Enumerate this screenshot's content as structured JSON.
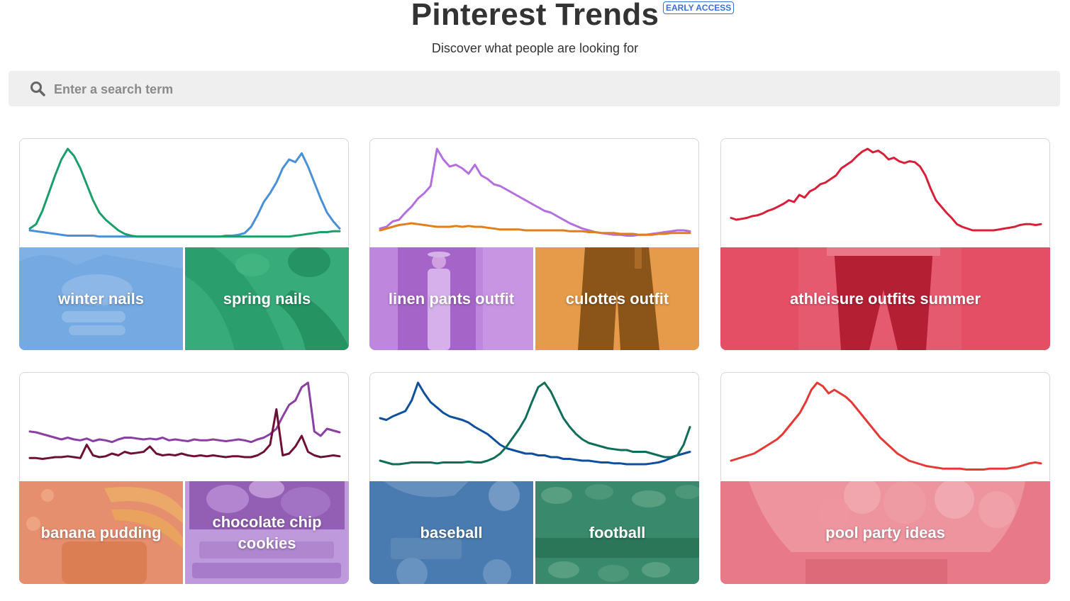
{
  "header": {
    "title": "Pinterest Trends",
    "badge": "EARLY ACCESS",
    "subtitle": "Discover what people are looking for"
  },
  "search": {
    "placeholder": "Enter a search term",
    "icon": "search-icon"
  },
  "cards": [
    {
      "tiles": [
        {
          "label": "winter nails",
          "color": "#4a8fd9"
        },
        {
          "label": "spring nails",
          "color": "#1a9e66"
        }
      ],
      "chart_data": {
        "type": "line",
        "title": "",
        "xlabel": "",
        "ylabel": "",
        "ylim": [
          0,
          100
        ],
        "series": [
          {
            "color": "#4a90d9",
            "values": [
              8,
              7,
              6,
              5,
              4,
              3,
              2,
              2,
              2,
              2,
              2,
              1,
              1,
              1,
              1,
              1,
              1,
              1,
              1,
              1,
              1,
              1,
              1,
              1,
              1,
              1,
              1,
              1,
              1,
              1,
              1,
              2,
              2,
              3,
              5,
              12,
              25,
              40,
              50,
              62,
              78,
              88,
              85,
              95,
              80,
              62,
              44,
              28,
              18,
              10
            ]
          },
          {
            "color": "#1a9e6a",
            "values": [
              10,
              15,
              30,
              50,
              70,
              88,
              100,
              92,
              78,
              60,
              42,
              28,
              20,
              14,
              8,
              4,
              2,
              1,
              1,
              1,
              1,
              1,
              1,
              1,
              1,
              1,
              1,
              1,
              1,
              1,
              1,
              1,
              1,
              1,
              1,
              1,
              1,
              1,
              1,
              1,
              1,
              1,
              2,
              3,
              4,
              5,
              6,
              6,
              7,
              7
            ]
          }
        ]
      }
    },
    {
      "tiles": [
        {
          "label": "linen pants outfit",
          "color": "#b36fd9"
        },
        {
          "label": "culottes outfit",
          "color": "#e08a2a"
        }
      ],
      "chart_data": {
        "type": "line",
        "title": "",
        "xlabel": "",
        "ylabel": "",
        "ylim": [
          0,
          100
        ],
        "series": [
          {
            "color": "#b36fe0",
            "values": [
              10,
              12,
              18,
              20,
              28,
              35,
              44,
              50,
              58,
              100,
              88,
              80,
              82,
              78,
              72,
              82,
              70,
              66,
              60,
              58,
              54,
              50,
              46,
              42,
              38,
              34,
              30,
              28,
              24,
              20,
              16,
              13,
              10,
              8,
              6,
              5,
              4,
              3,
              3,
              2,
              2,
              3,
              3,
              4,
              5,
              6,
              7,
              8,
              8,
              7
            ]
          },
          {
            "color": "#e07f1e",
            "values": [
              8,
              10,
              12,
              14,
              15,
              16,
              15,
              14,
              13,
              12,
              12,
              12,
              13,
              12,
              13,
              12,
              12,
              11,
              10,
              9,
              9,
              9,
              9,
              8,
              8,
              8,
              8,
              8,
              8,
              8,
              7,
              7,
              7,
              6,
              6,
              5,
              5,
              5,
              4,
              4,
              4,
              3,
              3,
              3,
              4,
              4,
              5,
              5,
              5,
              5
            ]
          }
        ]
      }
    },
    {
      "tiles": [
        {
          "label": "athleisure outfits summer",
          "color": "#e0354f"
        }
      ],
      "chart_data": {
        "type": "line",
        "title": "",
        "xlabel": "",
        "ylabel": "",
        "ylim": [
          0,
          100
        ],
        "series": [
          {
            "color": "#d81f3a",
            "values": [
              22,
              20,
              21,
              22,
              24,
              25,
              27,
              30,
              32,
              35,
              38,
              42,
              40,
              48,
              45,
              52,
              55,
              60,
              62,
              66,
              70,
              78,
              82,
              86,
              92,
              97,
              100,
              96,
              98,
              94,
              88,
              90,
              86,
              84,
              86,
              85,
              80,
              70,
              55,
              42,
              35,
              28,
              22,
              15,
              12,
              10,
              8,
              8,
              8,
              8,
              8,
              9,
              10,
              11,
              12,
              14,
              15,
              15,
              14,
              15
            ]
          }
        ]
      }
    },
    {
      "tiles": [
        {
          "label": "banana pudding",
          "color": "#e27a58"
        },
        {
          "label": "chocolate chip cookies",
          "color": "#a97bd0"
        }
      ],
      "chart_data": {
        "type": "line",
        "title": "",
        "xlabel": "",
        "ylabel": "",
        "ylim": [
          0,
          100
        ],
        "series": [
          {
            "color": "#8b3fa3",
            "values": [
              45,
              44,
              42,
              40,
              38,
              36,
              38,
              36,
              35,
              37,
              34,
              36,
              35,
              33,
              36,
              38,
              38,
              37,
              36,
              37,
              36,
              38,
              35,
              36,
              35,
              34,
              36,
              35,
              35,
              36,
              35,
              34,
              35,
              36,
              35,
              33,
              36,
              38,
              42,
              48,
              62,
              75,
              80,
              95,
              100,
              45,
              40,
              48,
              46,
              44
            ]
          },
          {
            "color": "#6e1036",
            "values": [
              15,
              15,
              14,
              15,
              16,
              16,
              17,
              16,
              15,
              30,
              18,
              16,
              17,
              20,
              18,
              22,
              20,
              21,
              22,
              28,
              20,
              18,
              19,
              18,
              20,
              18,
              17,
              18,
              17,
              18,
              17,
              16,
              17,
              17,
              16,
              16,
              18,
              22,
              30,
              70,
              18,
              20,
              28,
              40,
              22,
              18,
              16,
              17,
              18,
              17
            ]
          }
        ]
      }
    },
    {
      "tiles": [
        {
          "label": "baseball",
          "color": "#3f72aa"
        },
        {
          "label": "football",
          "color": "#2f8a6a"
        }
      ],
      "chart_data": {
        "type": "line",
        "title": "",
        "xlabel": "",
        "ylabel": "",
        "ylim": [
          0,
          100
        ],
        "series": [
          {
            "color": "#0e4f9e",
            "values": [
              60,
              58,
              62,
              65,
              68,
              80,
              100,
              88,
              78,
              72,
              66,
              62,
              60,
              58,
              55,
              50,
              46,
              42,
              36,
              30,
              26,
              24,
              22,
              20,
              20,
              18,
              18,
              16,
              16,
              14,
              14,
              13,
              12,
              12,
              11,
              10,
              10,
              9,
              9,
              8,
              8,
              8,
              8,
              9,
              10,
              12,
              15,
              18,
              20,
              22
            ]
          },
          {
            "color": "#0f6e5a",
            "values": [
              12,
              10,
              8,
              8,
              9,
              10,
              10,
              10,
              10,
              9,
              10,
              10,
              10,
              10,
              11,
              10,
              10,
              12,
              15,
              20,
              28,
              38,
              48,
              60,
              78,
              95,
              100,
              90,
              75,
              60,
              50,
              42,
              36,
              32,
              30,
              28,
              26,
              25,
              24,
              24,
              22,
              22,
              22,
              20,
              18,
              16,
              16,
              18,
              30,
              50
            ]
          }
        ]
      }
    },
    {
      "tiles": [
        {
          "label": "pool party ideas",
          "color": "#e46a78"
        }
      ],
      "chart_data": {
        "type": "line",
        "title": "",
        "xlabel": "",
        "ylabel": "",
        "ylim": [
          0,
          100
        ],
        "series": [
          {
            "color": "#e53935",
            "values": [
              12,
              14,
              16,
              18,
              20,
              24,
              28,
              32,
              36,
              42,
              50,
              58,
              66,
              78,
              92,
              100,
              96,
              88,
              92,
              88,
              84,
              78,
              70,
              62,
              54,
              46,
              38,
              32,
              26,
              20,
              16,
              12,
              10,
              8,
              6,
              5,
              4,
              3,
              3,
              3,
              3,
              2,
              2,
              2,
              2,
              3,
              3,
              3,
              3,
              4,
              5,
              7,
              9,
              10,
              9
            ]
          }
        ]
      }
    }
  ]
}
